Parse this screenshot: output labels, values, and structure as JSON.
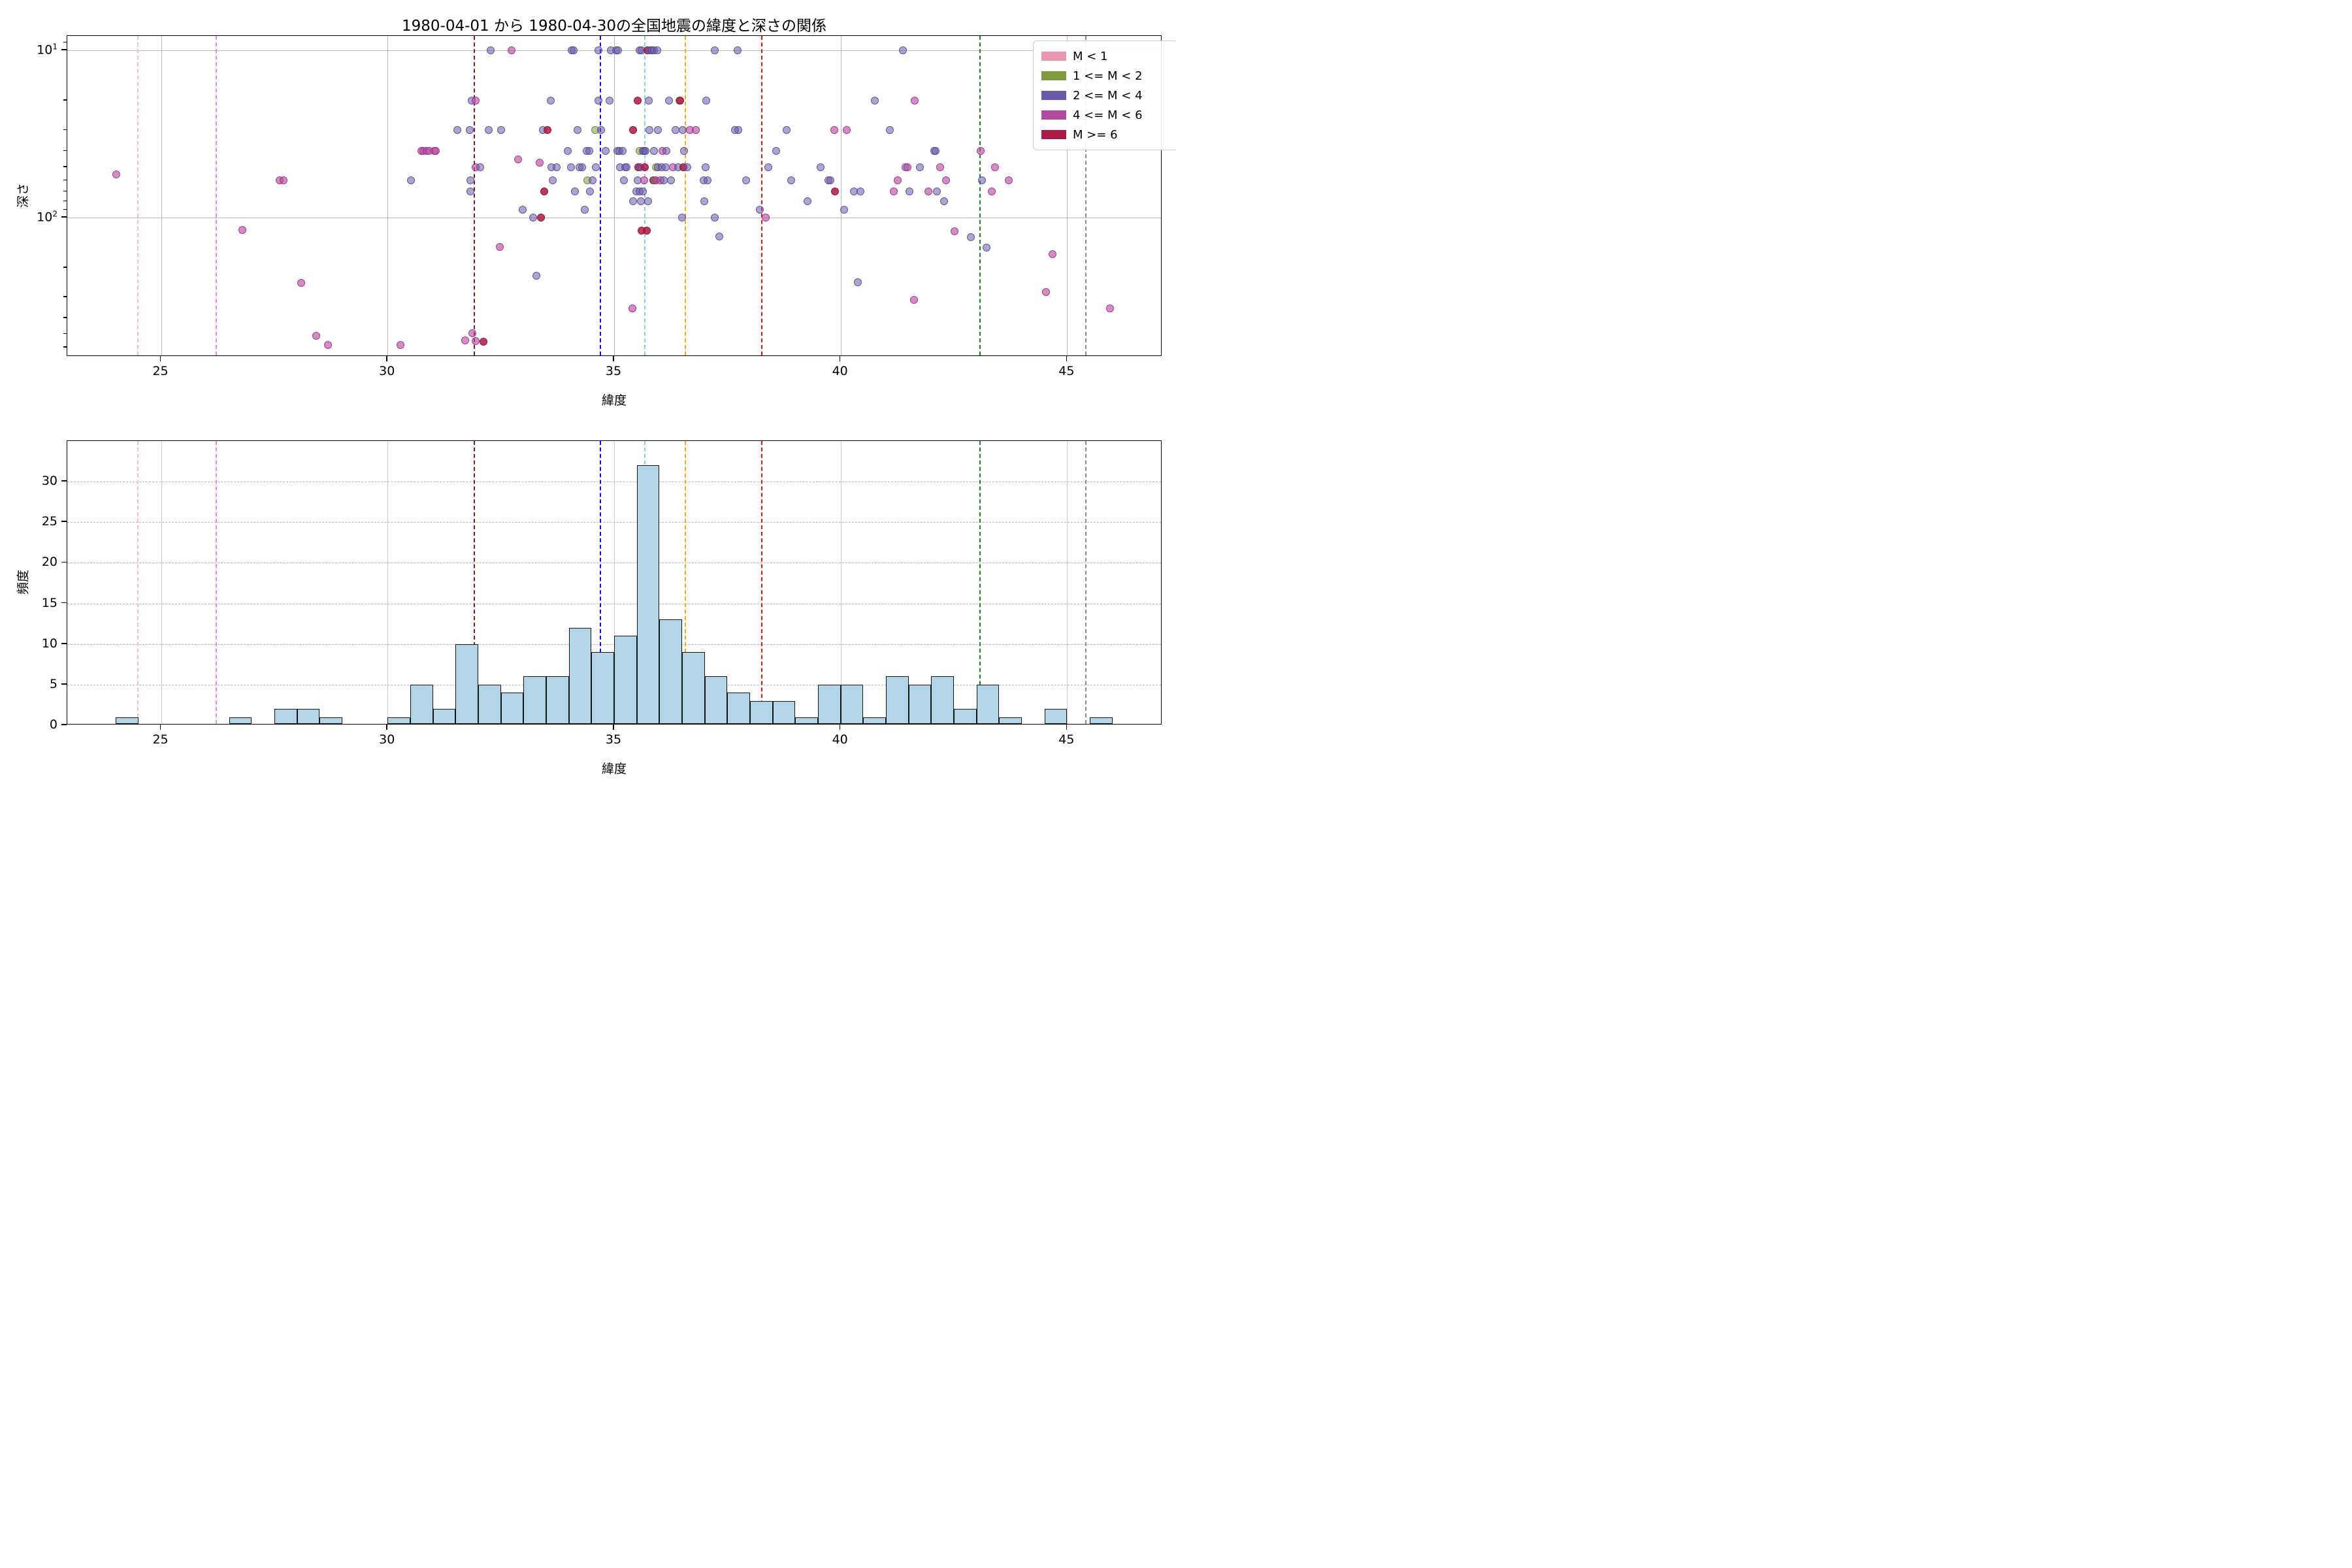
{
  "chart_data": [
    {
      "type": "scatter",
      "title": "1980-04-01 から 1980-04-30の全国地震の緯度と深さの関係",
      "xlabel": "緯度",
      "ylabel": "深さ",
      "xlim": [
        22.93,
        47.1
      ],
      "xticks": [
        25,
        30,
        35,
        40,
        45
      ],
      "y_scale": "log-inverted",
      "ylim_depth": [
        8.2,
        680
      ],
      "yticks_major": [
        {
          "base": "10",
          "exp": "1",
          "value": 10
        },
        {
          "base": "10",
          "exp": "2",
          "value": 100
        }
      ],
      "yticks_minor": [
        9,
        20,
        30,
        40,
        50,
        60,
        70,
        80,
        90,
        200,
        300,
        400,
        500,
        600
      ],
      "grid": "solid",
      "classes": [
        "M < 1",
        "1 <= M < 2",
        "2 <= M < 4",
        "4 <= M < 6",
        "M >= 6"
      ],
      "class_colors": [
        "#e897ae",
        "#7d9a3f",
        "#6959a8",
        "#b6499f",
        "#ab1a45"
      ],
      "points_format": [
        "latitude",
        "depth_km",
        "class_index"
      ],
      "points": [
        [
          24.01,
          55,
          3
        ],
        [
          26.8,
          119,
          3
        ],
        [
          27.62,
          60,
          3
        ],
        [
          27.7,
          60,
          3
        ],
        [
          28.1,
          245,
          3
        ],
        [
          28.42,
          510,
          3
        ],
        [
          28.69,
          580,
          3
        ],
        [
          30.29,
          580,
          3
        ],
        [
          30.51,
          60,
          2
        ],
        [
          30.74,
          40,
          3
        ],
        [
          30.79,
          40,
          3
        ],
        [
          30.86,
          40,
          3
        ],
        [
          30.92,
          40,
          3
        ],
        [
          31.03,
          40,
          3
        ],
        [
          31.07,
          40,
          3
        ],
        [
          31.54,
          30,
          2
        ],
        [
          31.81,
          30,
          2
        ],
        [
          31.83,
          60,
          2
        ],
        [
          31.83,
          70,
          2
        ],
        [
          31.85,
          20,
          2
        ],
        [
          31.95,
          20,
          3
        ],
        [
          31.94,
          50,
          3
        ],
        [
          32.04,
          50,
          2
        ],
        [
          31.87,
          490,
          3
        ],
        [
          31.71,
          545,
          3
        ],
        [
          31.95,
          550,
          3
        ],
        [
          32.12,
          555,
          4
        ],
        [
          32.27,
          10,
          2
        ],
        [
          32.23,
          30,
          2
        ],
        [
          32.51,
          30,
          2
        ],
        [
          32.48,
          150,
          3
        ],
        [
          32.73,
          10,
          3
        ],
        [
          32.88,
          45,
          3
        ],
        [
          32.98,
          90,
          2
        ],
        [
          33.21,
          100,
          2
        ],
        [
          33.39,
          100,
          4
        ],
        [
          33.28,
          223,
          2
        ],
        [
          33.35,
          47,
          3
        ],
        [
          33.43,
          30,
          2
        ],
        [
          33.46,
          70,
          4
        ],
        [
          33.53,
          30,
          4
        ],
        [
          33.6,
          20,
          2
        ],
        [
          33.62,
          50,
          2
        ],
        [
          33.65,
          60,
          2
        ],
        [
          33.73,
          50,
          2
        ],
        [
          33.98,
          40,
          2
        ],
        [
          34.05,
          50,
          2
        ],
        [
          34.06,
          10,
          2
        ],
        [
          34.1,
          10,
          2
        ],
        [
          34.13,
          70,
          2
        ],
        [
          34.2,
          30,
          2
        ],
        [
          34.24,
          50,
          2
        ],
        [
          34.29,
          50,
          2
        ],
        [
          34.35,
          90,
          2
        ],
        [
          34.39,
          40,
          2
        ],
        [
          34.45,
          40,
          2
        ],
        [
          34.47,
          70,
          2
        ],
        [
          34.41,
          60,
          1
        ],
        [
          34.53,
          60,
          2
        ],
        [
          34.58,
          30,
          1
        ],
        [
          34.6,
          50,
          2
        ],
        [
          34.65,
          10,
          2
        ],
        [
          34.66,
          20,
          2
        ],
        [
          34.71,
          30,
          2
        ],
        [
          34.81,
          40,
          2
        ],
        [
          34.9,
          20,
          2
        ],
        [
          34.93,
          10,
          2
        ],
        [
          35.04,
          10,
          2
        ],
        [
          35.07,
          40,
          2
        ],
        [
          35.08,
          10,
          2
        ],
        [
          35.12,
          40,
          2
        ],
        [
          35.13,
          50,
          2
        ],
        [
          35.19,
          40,
          2
        ],
        [
          35.22,
          60,
          2
        ],
        [
          35.24,
          50,
          2
        ],
        [
          35.28,
          50,
          2
        ],
        [
          35.4,
          350,
          3
        ],
        [
          35.42,
          30,
          4
        ],
        [
          35.42,
          80,
          2
        ],
        [
          35.49,
          70,
          2
        ],
        [
          35.52,
          20,
          4
        ],
        [
          35.52,
          60,
          2
        ],
        [
          35.54,
          50,
          4
        ],
        [
          35.56,
          10,
          2
        ],
        [
          35.56,
          40,
          1
        ],
        [
          35.56,
          70,
          2
        ],
        [
          35.58,
          50,
          2
        ],
        [
          35.59,
          80,
          2
        ],
        [
          35.6,
          10,
          2
        ],
        [
          35.61,
          120,
          4
        ],
        [
          35.63,
          40,
          2
        ],
        [
          35.63,
          70,
          2
        ],
        [
          35.66,
          40,
          2
        ],
        [
          35.66,
          60,
          3
        ],
        [
          35.68,
          50,
          4
        ],
        [
          35.7,
          40,
          2
        ],
        [
          35.72,
          120,
          4
        ],
        [
          35.73,
          10,
          4
        ],
        [
          35.75,
          80,
          2
        ],
        [
          35.77,
          20,
          2
        ],
        [
          35.78,
          30,
          2
        ],
        [
          35.8,
          10,
          2
        ],
        [
          35.84,
          10,
          2
        ],
        [
          35.87,
          60,
          4
        ],
        [
          35.88,
          10,
          2
        ],
        [
          35.88,
          40,
          2
        ],
        [
          35.9,
          60,
          1
        ],
        [
          35.92,
          50,
          1
        ],
        [
          35.93,
          60,
          3
        ],
        [
          35.95,
          10,
          2
        ],
        [
          35.96,
          30,
          2
        ],
        [
          35.96,
          50,
          2
        ],
        [
          36.02,
          60,
          3
        ],
        [
          36.06,
          50,
          2
        ],
        [
          36.07,
          40,
          3
        ],
        [
          36.1,
          60,
          2
        ],
        [
          36.14,
          50,
          2
        ],
        [
          36.16,
          40,
          2
        ],
        [
          36.21,
          20,
          2
        ],
        [
          36.26,
          60,
          2
        ],
        [
          36.3,
          50,
          3
        ],
        [
          36.35,
          30,
          2
        ],
        [
          36.41,
          50,
          2
        ],
        [
          36.44,
          20,
          1
        ],
        [
          36.46,
          20,
          4
        ],
        [
          36.5,
          100,
          2
        ],
        [
          36.51,
          30,
          2
        ],
        [
          36.53,
          50,
          4
        ],
        [
          36.54,
          40,
          2
        ],
        [
          36.61,
          50,
          2
        ],
        [
          36.68,
          30,
          3
        ],
        [
          36.8,
          30,
          3
        ],
        [
          36.98,
          60,
          2
        ],
        [
          36.99,
          80,
          2
        ],
        [
          37.02,
          50,
          2
        ],
        [
          37.03,
          20,
          2
        ],
        [
          37.06,
          60,
          2
        ],
        [
          37.22,
          10,
          2
        ],
        [
          37.22,
          100,
          2
        ],
        [
          37.32,
          130,
          2
        ],
        [
          37.67,
          30,
          2
        ],
        [
          37.72,
          10,
          2
        ],
        [
          37.74,
          30,
          2
        ],
        [
          37.91,
          60,
          2
        ],
        [
          38.22,
          90,
          2
        ],
        [
          38.35,
          100,
          3
        ],
        [
          38.4,
          50,
          2
        ],
        [
          38.58,
          40,
          2
        ],
        [
          38.81,
          30,
          2
        ],
        [
          38.91,
          60,
          2
        ],
        [
          39.27,
          80,
          2
        ],
        [
          39.56,
          50,
          2
        ],
        [
          39.73,
          60,
          2
        ],
        [
          39.78,
          60,
          2
        ],
        [
          39.86,
          30,
          3
        ],
        [
          39.88,
          70,
          4
        ],
        [
          40.08,
          90,
          2
        ],
        [
          40.14,
          30,
          3
        ],
        [
          40.3,
          70,
          2
        ],
        [
          40.38,
          243,
          2
        ],
        [
          40.44,
          70,
          2
        ],
        [
          40.76,
          20,
          2
        ],
        [
          41.08,
          30,
          2
        ],
        [
          41.18,
          70,
          3
        ],
        [
          41.26,
          60,
          3
        ],
        [
          41.38,
          10,
          2
        ],
        [
          41.43,
          50,
          2
        ],
        [
          41.48,
          50,
          3
        ],
        [
          41.52,
          70,
          2
        ],
        [
          41.62,
          310,
          3
        ],
        [
          41.64,
          20,
          3
        ],
        [
          41.75,
          50,
          2
        ],
        [
          41.94,
          70,
          3
        ],
        [
          42.07,
          40,
          2
        ],
        [
          42.1,
          40,
          2
        ],
        [
          42.13,
          70,
          2
        ],
        [
          42.2,
          50,
          3
        ],
        [
          42.29,
          80,
          2
        ],
        [
          42.33,
          60,
          3
        ],
        [
          42.52,
          121,
          3
        ],
        [
          42.88,
          131,
          2
        ],
        [
          43.09,
          40,
          3
        ],
        [
          43.12,
          60,
          2
        ],
        [
          43.22,
          151,
          2
        ],
        [
          43.34,
          70,
          3
        ],
        [
          43.41,
          50,
          3
        ],
        [
          43.71,
          60,
          3
        ],
        [
          44.54,
          280,
          3
        ],
        [
          44.68,
          165,
          3
        ],
        [
          45.94,
          350,
          3
        ]
      ]
    },
    {
      "type": "bar",
      "xlabel": "緯度",
      "ylabel": "頻度",
      "xlim": [
        22.93,
        47.1
      ],
      "xticks": [
        25,
        30,
        35,
        40,
        45
      ],
      "ylim": [
        0,
        35
      ],
      "yticks": [
        0,
        5,
        10,
        15,
        20,
        25,
        30
      ],
      "grid": "dashed-horizontal",
      "bin_start": 24.0,
      "bin_width": 0.5,
      "counts": [
        1,
        0,
        0,
        0,
        0,
        1,
        0,
        2,
        2,
        1,
        0,
        0,
        1,
        5,
        2,
        10,
        5,
        4,
        6,
        6,
        12,
        9,
        11,
        32,
        13,
        9,
        6,
        4,
        3,
        3,
        1,
        5,
        5,
        1,
        6,
        5,
        6,
        2,
        5,
        1,
        0,
        2,
        0,
        1
      ],
      "bar_fill": "#b2d6e7",
      "bar_edge": "#141414"
    }
  ],
  "ref_lines": [
    {
      "lat": 24.47,
      "color": "#ffb6c1"
    },
    {
      "lat": 26.21,
      "color": "#ee82ee"
    },
    {
      "lat": 31.9,
      "color": "#8b1a1a"
    },
    {
      "lat": 34.68,
      "color": "#0d0de0"
    },
    {
      "lat": 35.67,
      "color": "#87ceeb"
    },
    {
      "lat": 36.56,
      "color": "#ffa500"
    },
    {
      "lat": 38.25,
      "color": "#f50f0f"
    },
    {
      "lat": 43.06,
      "color": "#0f8a0f"
    },
    {
      "lat": 45.4,
      "color": "#8a8a8a"
    }
  ],
  "legend": {
    "items": [
      {
        "label": "M < 1",
        "color": "#e897ae"
      },
      {
        "label": "1 <= M < 2",
        "color": "#7d9a3f"
      },
      {
        "label": "2 <= M < 4",
        "color": "#6959a8"
      },
      {
        "label": "4 <= M < 6",
        "color": "#b6499f"
      },
      {
        "label": "M >= 6",
        "color": "#ab1a45"
      }
    ]
  }
}
